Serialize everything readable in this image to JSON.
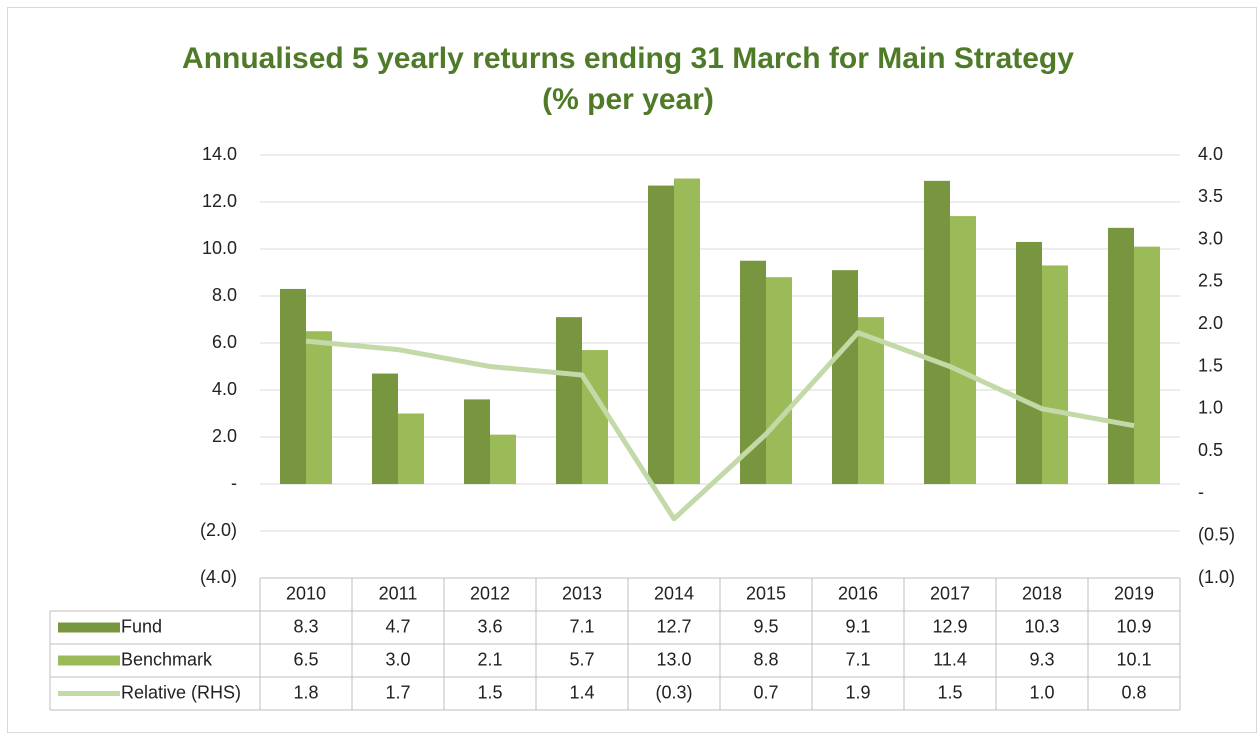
{
  "chart_data": {
    "type": "bar",
    "title": "Annualised 5 yearly returns ending 31 March for Main Strategy",
    "subtitle": "(% per year)",
    "categories": [
      "2010",
      "2011",
      "2012",
      "2013",
      "2014",
      "2015",
      "2016",
      "2017",
      "2018",
      "2019"
    ],
    "series": [
      {
        "name": "Fund",
        "color": "#77963f",
        "type": "bar",
        "values": [
          8.3,
          4.7,
          3.6,
          7.1,
          12.7,
          9.5,
          9.1,
          12.9,
          10.3,
          10.9
        ],
        "value_labels": [
          "8.3",
          "4.7",
          "3.6",
          "7.1",
          "12.7",
          "9.5",
          "9.1",
          "12.9",
          "10.3",
          "10.9"
        ]
      },
      {
        "name": "Benchmark",
        "color": "#9bbb59",
        "type": "bar",
        "values": [
          6.5,
          3.0,
          2.1,
          5.7,
          13.0,
          8.8,
          7.1,
          11.4,
          9.3,
          10.1
        ],
        "value_labels": [
          "6.5",
          "3.0",
          "2.1",
          "5.7",
          "13.0",
          "8.8",
          "7.1",
          "11.4",
          "9.3",
          "10.1"
        ]
      },
      {
        "name": "Relative (RHS)",
        "color": "#c4d9a8",
        "type": "line",
        "axis": "y2",
        "values": [
          1.8,
          1.7,
          1.5,
          1.4,
          -0.3,
          0.7,
          1.9,
          1.5,
          1.0,
          0.8
        ],
        "value_labels": [
          "1.8",
          "1.7",
          "1.5",
          "1.4",
          "(0.3)",
          "0.7",
          "1.9",
          "1.5",
          "1.0",
          "0.8"
        ]
      }
    ],
    "ylim": [
      -4,
      14
    ],
    "yticks": [
      {
        "value": -4,
        "label": "(4.0)"
      },
      {
        "value": -2,
        "label": "(2.0)"
      },
      {
        "value": 0,
        "label": "-"
      },
      {
        "value": 2,
        "label": "2.0"
      },
      {
        "value": 4,
        "label": "4.0"
      },
      {
        "value": 6,
        "label": "6.0"
      },
      {
        "value": 8,
        "label": "8.0"
      },
      {
        "value": 10,
        "label": "10.0"
      },
      {
        "value": 12,
        "label": "12.0"
      },
      {
        "value": 14,
        "label": "14.0"
      }
    ],
    "y2lim": [
      -1,
      4
    ],
    "y2ticks": [
      {
        "value": -1,
        "label": "(1.0)"
      },
      {
        "value": -0.5,
        "label": "(0.5)"
      },
      {
        "value": 0,
        "label": "-"
      },
      {
        "value": 0.5,
        "label": "0.5"
      },
      {
        "value": 1,
        "label": "1.0"
      },
      {
        "value": 1.5,
        "label": "1.5"
      },
      {
        "value": 2,
        "label": "2.0"
      },
      {
        "value": 2.5,
        "label": "2.5"
      },
      {
        "value": 3,
        "label": "3.0"
      },
      {
        "value": 3.5,
        "label": "3.5"
      },
      {
        "value": 4,
        "label": "4.0"
      }
    ],
    "grid": true
  }
}
